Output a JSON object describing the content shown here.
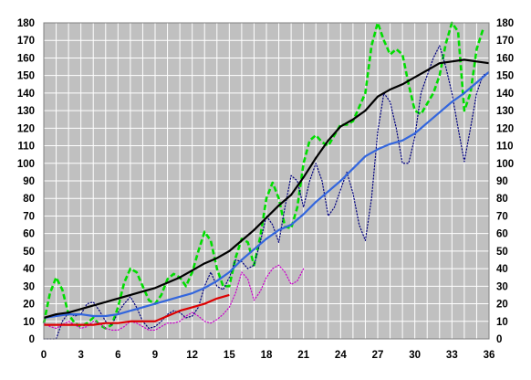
{
  "chart_data": {
    "type": "line",
    "title": "",
    "xlabel": "",
    "ylabel": "",
    "xlim": [
      0,
      36
    ],
    "ylim": [
      0,
      180
    ],
    "x_ticks": [
      0,
      3,
      6,
      9,
      12,
      15,
      18,
      21,
      24,
      27,
      30,
      33,
      36
    ],
    "y_ticks": [
      0,
      10,
      20,
      30,
      40,
      50,
      60,
      70,
      80,
      90,
      100,
      110,
      120,
      130,
      140,
      150,
      160,
      170,
      180
    ],
    "y_ticks_right": true,
    "grid": true,
    "plot_background": "#c0c0c0",
    "gridline_color": "#ffffff",
    "series": [
      {
        "color": "#00dd00",
        "style": "dashed",
        "x": [
          0,
          0.5,
          1,
          1.5,
          2,
          2.5,
          3,
          3.5,
          4,
          4.5,
          5,
          5.5,
          6,
          6.5,
          7,
          7.5,
          8,
          8.5,
          9,
          9.5,
          10,
          10.5,
          11,
          11.5,
          12,
          12.5,
          13,
          13.5,
          14,
          14.5,
          15,
          15.5,
          16,
          16.5,
          17,
          17.5,
          18,
          18.5,
          19,
          19.5,
          20,
          20.5,
          21,
          21.5,
          22,
          22.5,
          23,
          23.5,
          24,
          24.5,
          25,
          25.5,
          26,
          26.5,
          27,
          27.5,
          28,
          28.5,
          29,
          29.5,
          30,
          30.5,
          31,
          31.5,
          32,
          32.5,
          33,
          33.5,
          34,
          34.5,
          35,
          35.5
        ],
        "y": [
          9,
          26,
          35,
          28,
          14,
          9,
          7,
          9,
          12,
          8,
          6,
          8,
          18,
          32,
          40,
          38,
          30,
          22,
          20,
          25,
          34,
          37,
          35,
          30,
          38,
          50,
          61,
          56,
          40,
          30,
          30,
          46,
          57,
          55,
          42,
          58,
          80,
          89,
          80,
          64,
          63,
          75,
          100,
          113,
          116,
          112,
          110,
          116,
          122,
          122,
          124,
          132,
          140,
          167,
          180,
          170,
          162,
          165,
          162,
          145,
          130,
          128,
          134,
          140,
          150,
          168,
          180,
          175,
          130,
          140,
          165,
          176
        ]
      },
      {
        "color": "#000080",
        "style": "dotted",
        "x": [
          0,
          0.5,
          1,
          1.5,
          2,
          2.5,
          3,
          3.5,
          4,
          4.5,
          5,
          5.5,
          6,
          6.5,
          7,
          7.5,
          8,
          8.5,
          9,
          9.5,
          10,
          10.5,
          11,
          11.5,
          12,
          12.5,
          13,
          13.5,
          14,
          14.5,
          15,
          15.5,
          16,
          16.5,
          17,
          17.5,
          18,
          18.5,
          19,
          19.5,
          20,
          20.5,
          21,
          21.5,
          22,
          22.5,
          23,
          23.5,
          24,
          24.5,
          25,
          25.5,
          26,
          26.5,
          27,
          27.5,
          28,
          28.5,
          29,
          29.5,
          30,
          30.5,
          31,
          31.5,
          32,
          32.5,
          33,
          33.5,
          34,
          34.5,
          35,
          35.5,
          36
        ],
        "y": [
          0,
          0,
          0,
          10,
          15,
          13,
          14,
          20,
          21,
          16,
          10,
          8,
          15,
          20,
          24,
          18,
          10,
          6,
          7,
          10,
          14,
          16,
          15,
          12,
          13,
          18,
          30,
          38,
          30,
          28,
          35,
          45,
          44,
          40,
          42,
          55,
          70,
          65,
          55,
          75,
          93,
          90,
          75,
          90,
          100,
          90,
          70,
          75,
          85,
          95,
          83,
          65,
          56,
          80,
          118,
          140,
          135,
          120,
          100,
          100,
          115,
          140,
          150,
          160,
          167,
          155,
          140,
          120,
          101,
          120,
          140,
          150,
          152
        ]
      },
      {
        "color": "#cc00cc",
        "style": "dotted",
        "x": [
          0,
          0.5,
          1,
          1.5,
          2,
          2.5,
          3,
          3.5,
          4,
          4.5,
          5,
          5.5,
          6,
          6.5,
          7,
          7.5,
          8,
          8.5,
          9,
          9.5,
          10,
          10.5,
          11,
          11.5,
          12,
          12.5,
          13,
          13.5,
          14,
          14.5,
          15,
          15.5,
          16,
          16.5,
          17,
          17.5,
          18,
          18.5,
          19,
          19.5,
          20,
          20.5,
          21
        ],
        "y": [
          9,
          7,
          6,
          8,
          10,
          8,
          6,
          7,
          10,
          9,
          6,
          5,
          5,
          7,
          10,
          9,
          7,
          5,
          5,
          7,
          9,
          9,
          10,
          13,
          15,
          13,
          10,
          9,
          11,
          14,
          18,
          26,
          38,
          34,
          22,
          27,
          35,
          40,
          42,
          38,
          31,
          33,
          40
        ]
      },
      {
        "color": "#dd0000",
        "style": "solid",
        "x": [
          0,
          1,
          2,
          3,
          4,
          5,
          6,
          7,
          8,
          9,
          10,
          11,
          12,
          13,
          14,
          15
        ],
        "y": [
          8,
          8,
          8,
          8,
          8,
          9,
          9,
          10,
          10,
          10,
          13,
          16,
          18,
          20,
          23,
          25
        ]
      },
      {
        "color": "#3366dd",
        "style": "solid",
        "x": [
          0,
          1,
          2,
          3,
          4,
          5,
          6,
          7,
          8,
          9,
          10,
          11,
          12,
          13,
          14,
          15,
          16,
          17,
          18,
          19,
          20,
          21,
          22,
          23,
          24,
          25,
          26,
          27,
          28,
          29,
          30,
          31,
          32,
          33,
          34,
          35,
          36
        ],
        "y": [
          12,
          13,
          14,
          14,
          13,
          13,
          14,
          16,
          18,
          20,
          22,
          24,
          26,
          29,
          33,
          38,
          45,
          51,
          57,
          62,
          65,
          71,
          78,
          84,
          90,
          97,
          104,
          108,
          111,
          113,
          117,
          123,
          129,
          135,
          140,
          146,
          152
        ]
      },
      {
        "color": "#000000",
        "style": "solid",
        "x": [
          0,
          1,
          2,
          3,
          4,
          5,
          6,
          7,
          8,
          9,
          10,
          11,
          12,
          13,
          14,
          15,
          16,
          17,
          18,
          19,
          20,
          21,
          22,
          23,
          24,
          25,
          26,
          27,
          28,
          29,
          30,
          31,
          32,
          33,
          34,
          35,
          36
        ],
        "y": [
          12,
          14,
          15,
          17,
          19,
          21,
          23,
          25,
          27,
          29,
          32,
          35,
          39,
          43,
          46,
          50,
          56,
          62,
          69,
          76,
          82,
          92,
          103,
          113,
          121,
          125,
          130,
          138,
          142,
          145,
          149,
          153,
          157,
          158,
          159,
          158,
          157
        ]
      }
    ]
  }
}
